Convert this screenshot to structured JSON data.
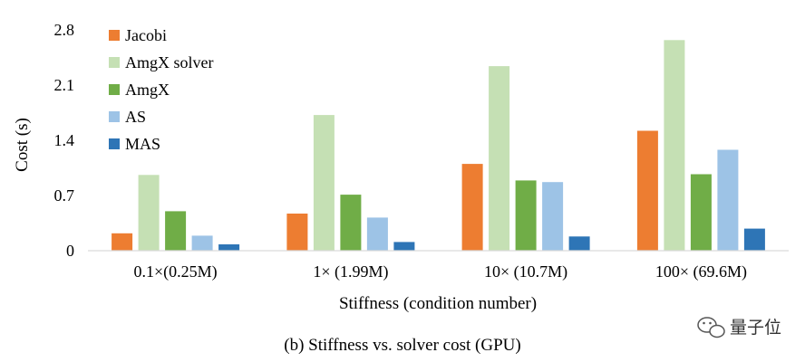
{
  "chart_data": {
    "type": "bar",
    "categories": [
      "0.1×(0.25M)",
      "1× (1.99M)",
      "10× (10.7M)",
      "100× (69.6M)"
    ],
    "series": [
      {
        "name": "Jacobi",
        "color": "#ED7D31",
        "values": [
          0.22,
          0.47,
          1.1,
          1.52
        ]
      },
      {
        "name": "AmgX solver",
        "color": "#C5E0B4",
        "values": [
          0.96,
          1.72,
          2.34,
          2.67
        ]
      },
      {
        "name": "AmgX",
        "color": "#70AD47",
        "values": [
          0.5,
          0.71,
          0.89,
          0.97
        ]
      },
      {
        "name": "AS",
        "color": "#9DC3E6",
        "values": [
          0.19,
          0.42,
          0.87,
          1.28
        ]
      },
      {
        "name": "MAS",
        "color": "#2E75B6",
        "values": [
          0.08,
          0.11,
          0.18,
          0.28
        ]
      }
    ],
    "title": "",
    "xlabel": "Stiffness (condition number)",
    "ylabel": "Cost (s)",
    "ylim": [
      0,
      2.8
    ],
    "yticks": [
      "0",
      "0.7",
      "1.4",
      "2.1",
      "2.8"
    ],
    "legend_position": "top-left",
    "grid": false
  },
  "caption": "(b) Stiffness vs. solver cost (GPU)",
  "watermark": "量子位"
}
